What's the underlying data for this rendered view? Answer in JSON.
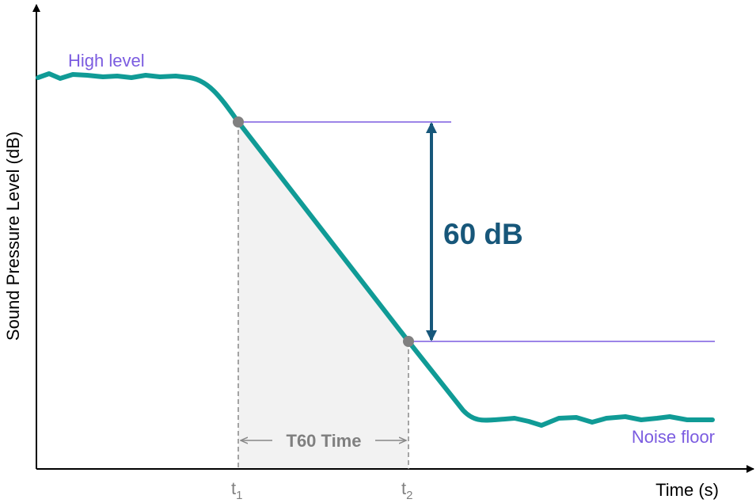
{
  "diagram": {
    "y_axis_label": "Sound Pressure Level (dB)",
    "x_axis_label": "Time (s)",
    "high_level": "High level",
    "noise_floor": "Noise floor",
    "decay_label": "60 dB",
    "interval_label": "T60 Time",
    "t1": {
      "base": "t",
      "sub": "1"
    },
    "t2": {
      "base": "t",
      "sub": "2"
    }
  }
}
